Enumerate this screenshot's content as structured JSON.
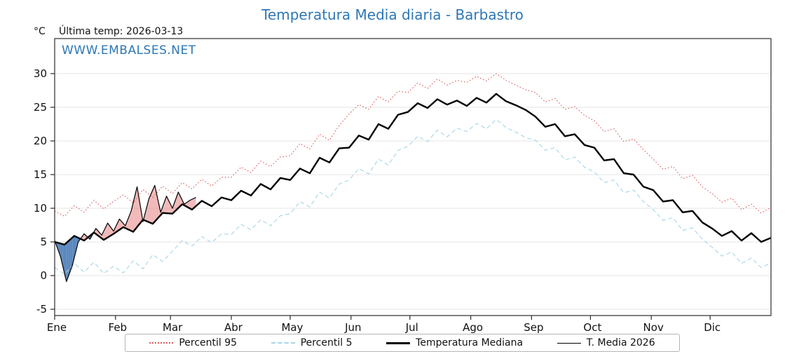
{
  "header": {
    "title": "Temperatura Media diaria - Barbastro",
    "unit_label": "°C",
    "last_temp_text": "Última temp: 2026-03-13",
    "watermark": "WWW.EMBALSES.NET",
    "title_color": "#2e77b5"
  },
  "legend": {
    "position": "bottom",
    "items": [
      {
        "label": "Percentil 95"
      },
      {
        "label": "Percentil 5"
      },
      {
        "label": "Temperatura Mediana"
      },
      {
        "label": "T. Media 2026"
      }
    ]
  },
  "chart_data": {
    "type": "line",
    "title": "Temperatura Media diaria - Barbastro",
    "xlabel": "",
    "ylabel": "°C",
    "ylim": [
      -6,
      35.4
    ],
    "yticks": [
      -5,
      0,
      5,
      10,
      15,
      20,
      25,
      30
    ],
    "grid": "horizontal",
    "x_max_day": 365,
    "month_labels": [
      "Ene",
      "Feb",
      "Mar",
      "Abr",
      "May",
      "Jun",
      "Jul",
      "Ago",
      "Sep",
      "Oct",
      "Nov",
      "Dic"
    ],
    "month_start_days": [
      0,
      31,
      59,
      90,
      120,
      151,
      181,
      212,
      243,
      273,
      304,
      334
    ],
    "fill_above_color": "rgba(224,100,100,0.45)",
    "fill_below_color": "rgba(62,115,178,0.85)",
    "series": [
      {
        "name": "Percentil 95",
        "color": "#e05a5a",
        "style": "dotted",
        "width": 1.1,
        "x_step": 5,
        "values": [
          9.6,
          8.8,
          10.4,
          9.4,
          11.2,
          9.9,
          11.0,
          12.0,
          10.8,
          12.8,
          11.6,
          13.3,
          12.2,
          13.8,
          12.9,
          14.3,
          13.3,
          14.6,
          14.6,
          16.1,
          15.3,
          17.0,
          16.2,
          17.6,
          17.8,
          19.6,
          18.8,
          21.0,
          20.1,
          22.3,
          24.0,
          25.4,
          24.7,
          26.6,
          25.8,
          27.4,
          27.2,
          28.6,
          27.8,
          29.2,
          28.3,
          29.0,
          28.7,
          29.6,
          28.9,
          30.0,
          29.0,
          28.3,
          27.6,
          27.2,
          25.8,
          26.3,
          24.7,
          25.1,
          23.8,
          23.0,
          21.4,
          21.8,
          19.9,
          20.3,
          18.7,
          17.3,
          15.8,
          16.2,
          14.4,
          14.9,
          13.2,
          12.2,
          10.9,
          11.5,
          9.8,
          10.6,
          9.3,
          10.1
        ]
      },
      {
        "name": "Percentil 5",
        "color": "#a5d5e8",
        "style": "dashed",
        "width": 1.1,
        "x_step": 5,
        "values": [
          1.2,
          0.2,
          1.8,
          0.5,
          2.0,
          0.3,
          1.4,
          0.4,
          2.2,
          1.0,
          3.1,
          2.1,
          3.6,
          5.2,
          4.4,
          5.8,
          4.9,
          6.2,
          6.1,
          7.6,
          6.8,
          8.3,
          7.4,
          8.9,
          9.2,
          11.0,
          10.2,
          12.4,
          11.5,
          13.6,
          14.2,
          15.9,
          15.1,
          17.3,
          16.4,
          18.6,
          19.2,
          20.7,
          19.9,
          21.6,
          20.6,
          21.9,
          21.4,
          22.6,
          21.8,
          23.2,
          22.0,
          21.3,
          20.5,
          20.1,
          18.6,
          19.0,
          17.2,
          17.6,
          16.1,
          15.4,
          13.8,
          14.2,
          12.3,
          12.7,
          11.0,
          9.8,
          8.2,
          8.6,
          6.7,
          7.1,
          5.4,
          4.2,
          2.9,
          3.5,
          1.8,
          2.6,
          1.2,
          1.9
        ]
      },
      {
        "name": "Temperatura Mediana",
        "color": "#000000",
        "style": "solid",
        "width": 2.4,
        "x_step": 5,
        "values": [
          5.0,
          4.6,
          5.9,
          5.2,
          6.4,
          5.3,
          6.2,
          7.2,
          6.5,
          8.3,
          7.7,
          9.3,
          9.2,
          10.6,
          9.8,
          11.1,
          10.3,
          11.6,
          11.2,
          12.6,
          11.9,
          13.6,
          12.8,
          14.5,
          14.2,
          15.9,
          15.2,
          17.5,
          16.8,
          18.9,
          19.0,
          20.8,
          20.2,
          22.5,
          21.8,
          23.9,
          24.3,
          25.6,
          24.9,
          26.2,
          25.4,
          26.0,
          25.2,
          26.4,
          25.7,
          27.0,
          25.9,
          25.3,
          24.6,
          23.6,
          22.1,
          22.5,
          20.7,
          21.0,
          19.4,
          19.0,
          17.1,
          17.3,
          15.2,
          15.0,
          13.2,
          12.7,
          11.0,
          11.2,
          9.4,
          9.6,
          7.9,
          7.0,
          5.9,
          6.6,
          5.2,
          6.3,
          5.0,
          5.6
        ]
      },
      {
        "name": "T. Media 2026",
        "color": "#000000",
        "style": "solid",
        "width": 1.2,
        "x_step": 3,
        "values": [
          5.2,
          2.8,
          -0.9,
          1.5,
          5.0,
          6.2,
          5.4,
          7.0,
          6.0,
          7.8,
          6.6,
          8.4,
          7.4,
          9.6,
          13.2,
          8.0,
          11.4,
          13.4,
          9.4,
          11.8,
          10.0,
          12.4,
          10.6,
          11.2,
          11.6
        ]
      }
    ],
    "fill_note": "shaded area between T. Media 2026 and Temperatura Mediana; red where 2026 above median, blue where below"
  }
}
